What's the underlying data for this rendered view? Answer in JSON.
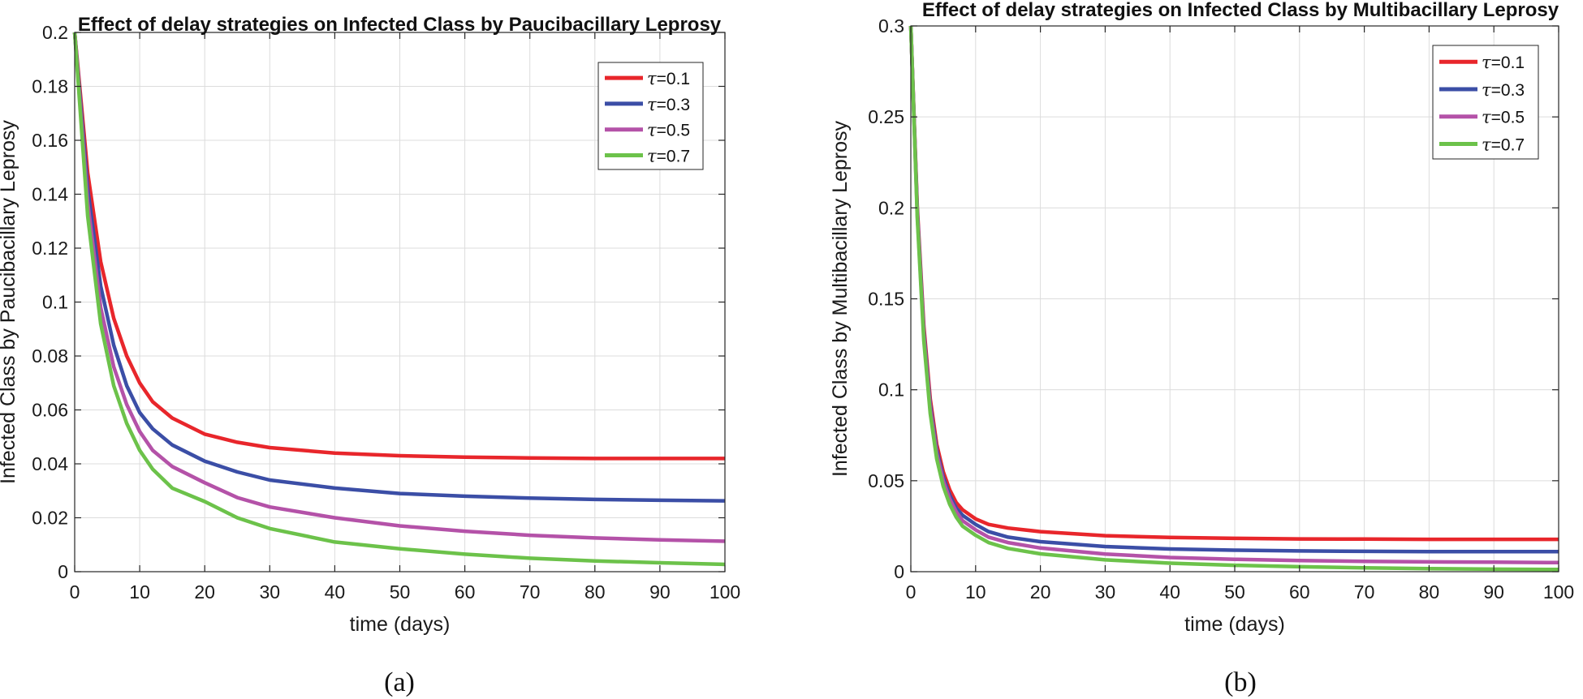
{
  "chart_data": [
    {
      "type": "line",
      "title": "Effect of delay strategies on Infected Class by Paucibacillary Leprosy",
      "xlabel": "time (days)",
      "ylabel": "Infected Class by Paucibacillary Leprosy",
      "xlim": [
        0,
        100
      ],
      "ylim": [
        0,
        0.2
      ],
      "xticks": [
        0,
        10,
        20,
        30,
        40,
        50,
        60,
        70,
        80,
        90,
        100
      ],
      "xtick_labels": [
        "0",
        "10",
        "20",
        "30",
        "40",
        "50",
        "60",
        "70",
        "80",
        "90",
        "100"
      ],
      "yticks": [
        0,
        0.02,
        0.04,
        0.06,
        0.08,
        0.1,
        0.12,
        0.14,
        0.16,
        0.18,
        0.2
      ],
      "ytick_labels": [
        "0",
        "0.02",
        "0.04",
        "0.06",
        "0.08",
        "0.1",
        "0.12",
        "0.14",
        "0.16",
        "0.18",
        "0.2"
      ],
      "grid": true,
      "legend_position": "top-right",
      "caption": "(a)",
      "series": [
        {
          "name": "τ=0.1",
          "tau_symbol": "τ",
          "value_label": "=0.1",
          "color": "#e8262b",
          "x": [
            0,
            2,
            4,
            6,
            8,
            10,
            12,
            15,
            20,
            25,
            30,
            40,
            50,
            60,
            70,
            80,
            90,
            100
          ],
          "values": [
            0.2,
            0.148,
            0.115,
            0.094,
            0.08,
            0.07,
            0.063,
            0.057,
            0.051,
            0.048,
            0.046,
            0.044,
            0.043,
            0.0425,
            0.0422,
            0.042,
            0.042,
            0.042
          ]
        },
        {
          "name": "τ=0.3",
          "tau_symbol": "τ",
          "value_label": "=0.3",
          "color": "#3b4ea6",
          "x": [
            0,
            2,
            4,
            6,
            8,
            10,
            12,
            15,
            20,
            25,
            30,
            40,
            50,
            60,
            70,
            80,
            90,
            100
          ],
          "values": [
            0.2,
            0.142,
            0.106,
            0.084,
            0.069,
            0.059,
            0.053,
            0.047,
            0.041,
            0.037,
            0.034,
            0.031,
            0.029,
            0.028,
            0.0273,
            0.0268,
            0.0265,
            0.0263
          ]
        },
        {
          "name": "τ=0.5",
          "tau_symbol": "τ",
          "value_label": "=0.5",
          "color": "#b452a8",
          "x": [
            0,
            2,
            4,
            6,
            8,
            10,
            12,
            15,
            20,
            25,
            30,
            40,
            50,
            60,
            70,
            80,
            90,
            100
          ],
          "values": [
            0.2,
            0.137,
            0.098,
            0.076,
            0.062,
            0.052,
            0.045,
            0.039,
            0.033,
            0.0275,
            0.024,
            0.02,
            0.017,
            0.015,
            0.0135,
            0.0125,
            0.0118,
            0.0113
          ]
        },
        {
          "name": "τ=0.7",
          "tau_symbol": "τ",
          "value_label": "=0.7",
          "color": "#6cc24a",
          "x": [
            0,
            2,
            4,
            6,
            8,
            10,
            12,
            15,
            20,
            25,
            30,
            40,
            50,
            60,
            70,
            80,
            90,
            100
          ],
          "values": [
            0.2,
            0.132,
            0.092,
            0.069,
            0.055,
            0.045,
            0.038,
            0.031,
            0.026,
            0.02,
            0.016,
            0.011,
            0.0085,
            0.0065,
            0.005,
            0.004,
            0.0033,
            0.0027
          ]
        }
      ]
    },
    {
      "type": "line",
      "title": "Effect of delay strategies on Infected Class by Multibacillary Leprosy",
      "xlabel": "time (days)",
      "ylabel": "Infected Class by Multibacillary Leprosy",
      "xlim": [
        0,
        100
      ],
      "ylim": [
        0,
        0.3
      ],
      "xticks": [
        0,
        10,
        20,
        30,
        40,
        50,
        60,
        70,
        80,
        90,
        100
      ],
      "xtick_labels": [
        "0",
        "10",
        "20",
        "30",
        "40",
        "50",
        "60",
        "70",
        "80",
        "90",
        "100"
      ],
      "yticks": [
        0,
        0.05,
        0.1,
        0.15,
        0.2,
        0.25,
        0.3
      ],
      "ytick_labels": [
        "0",
        "0.05",
        "0.1",
        "0.15",
        "0.2",
        "0.25",
        "0.3"
      ],
      "grid": true,
      "legend_position": "top-right",
      "caption": "(b)",
      "series": [
        {
          "name": "τ=0.1",
          "tau_symbol": "τ",
          "value_label": "=0.1",
          "color": "#e8262b",
          "x": [
            0,
            1,
            2,
            3,
            4,
            5,
            6,
            7,
            8,
            10,
            12,
            15,
            20,
            30,
            40,
            50,
            60,
            70,
            80,
            90,
            100
          ],
          "values": [
            0.3,
            0.2,
            0.135,
            0.095,
            0.07,
            0.055,
            0.045,
            0.038,
            0.034,
            0.029,
            0.026,
            0.024,
            0.022,
            0.0198,
            0.0188,
            0.0183,
            0.018,
            0.0179,
            0.0178,
            0.0178,
            0.0178
          ]
        },
        {
          "name": "τ=0.3",
          "tau_symbol": "τ",
          "value_label": "=0.3",
          "color": "#3b4ea6",
          "x": [
            0,
            1,
            2,
            3,
            4,
            5,
            6,
            7,
            8,
            10,
            12,
            15,
            20,
            30,
            40,
            50,
            60,
            70,
            80,
            90,
            100
          ],
          "values": [
            0.3,
            0.198,
            0.132,
            0.092,
            0.067,
            0.052,
            0.042,
            0.035,
            0.031,
            0.026,
            0.022,
            0.019,
            0.0165,
            0.0138,
            0.0125,
            0.0118,
            0.0114,
            0.0112,
            0.011,
            0.011,
            0.011
          ]
        },
        {
          "name": "τ=0.5",
          "tau_symbol": "τ",
          "value_label": "=0.5",
          "color": "#b452a8",
          "x": [
            0,
            1,
            2,
            3,
            4,
            5,
            6,
            7,
            8,
            10,
            12,
            15,
            20,
            30,
            40,
            50,
            60,
            70,
            80,
            90,
            100
          ],
          "values": [
            0.3,
            0.196,
            0.13,
            0.09,
            0.065,
            0.05,
            0.04,
            0.033,
            0.028,
            0.023,
            0.019,
            0.016,
            0.013,
            0.0097,
            0.0078,
            0.0068,
            0.0061,
            0.0057,
            0.0054,
            0.0052,
            0.005
          ]
        },
        {
          "name": "τ=0.7",
          "tau_symbol": "τ",
          "value_label": "=0.7",
          "color": "#6cc24a",
          "x": [
            0,
            1,
            2,
            3,
            4,
            5,
            6,
            7,
            8,
            10,
            12,
            15,
            20,
            30,
            40,
            50,
            60,
            70,
            80,
            90,
            100
          ],
          "values": [
            0.3,
            0.194,
            0.127,
            0.087,
            0.062,
            0.047,
            0.037,
            0.03,
            0.025,
            0.02,
            0.016,
            0.0128,
            0.0098,
            0.0065,
            0.0047,
            0.0035,
            0.0027,
            0.0021,
            0.0017,
            0.0014,
            0.0012
          ]
        }
      ]
    }
  ]
}
